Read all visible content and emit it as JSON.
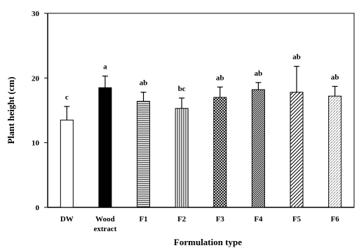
{
  "chart_data": {
    "type": "bar",
    "title": "",
    "xlabel": "Formulation type",
    "ylabel": "Plant height (cm)",
    "ylim": [
      0,
      30
    ],
    "yticks": [
      0,
      10,
      20,
      30
    ],
    "grid": false,
    "legend": "none",
    "categories": [
      [
        "DW"
      ],
      [
        "Wood",
        "extract"
      ],
      [
        "F1"
      ],
      [
        "F2"
      ],
      [
        "F3"
      ],
      [
        "F4"
      ],
      [
        "F5"
      ],
      [
        "F6"
      ]
    ],
    "values": [
      13.5,
      18.5,
      16.4,
      15.3,
      17.0,
      18.2,
      17.8,
      17.2
    ],
    "errors": [
      2.1,
      1.8,
      1.4,
      1.6,
      1.6,
      1.1,
      4.0,
      1.5
    ],
    "significance": [
      "c",
      "a",
      "ab",
      "bc",
      "ab",
      "ab",
      "ab",
      "ab"
    ],
    "fills": [
      "white",
      "black",
      "horizontal-lines",
      "vertical-lines",
      "cross-hatch",
      "dense-diagonal",
      "diagonal-lines",
      "diagonal-dots"
    ],
    "colors": {
      "stroke": "#000000",
      "background": "#ffffff"
    }
  }
}
